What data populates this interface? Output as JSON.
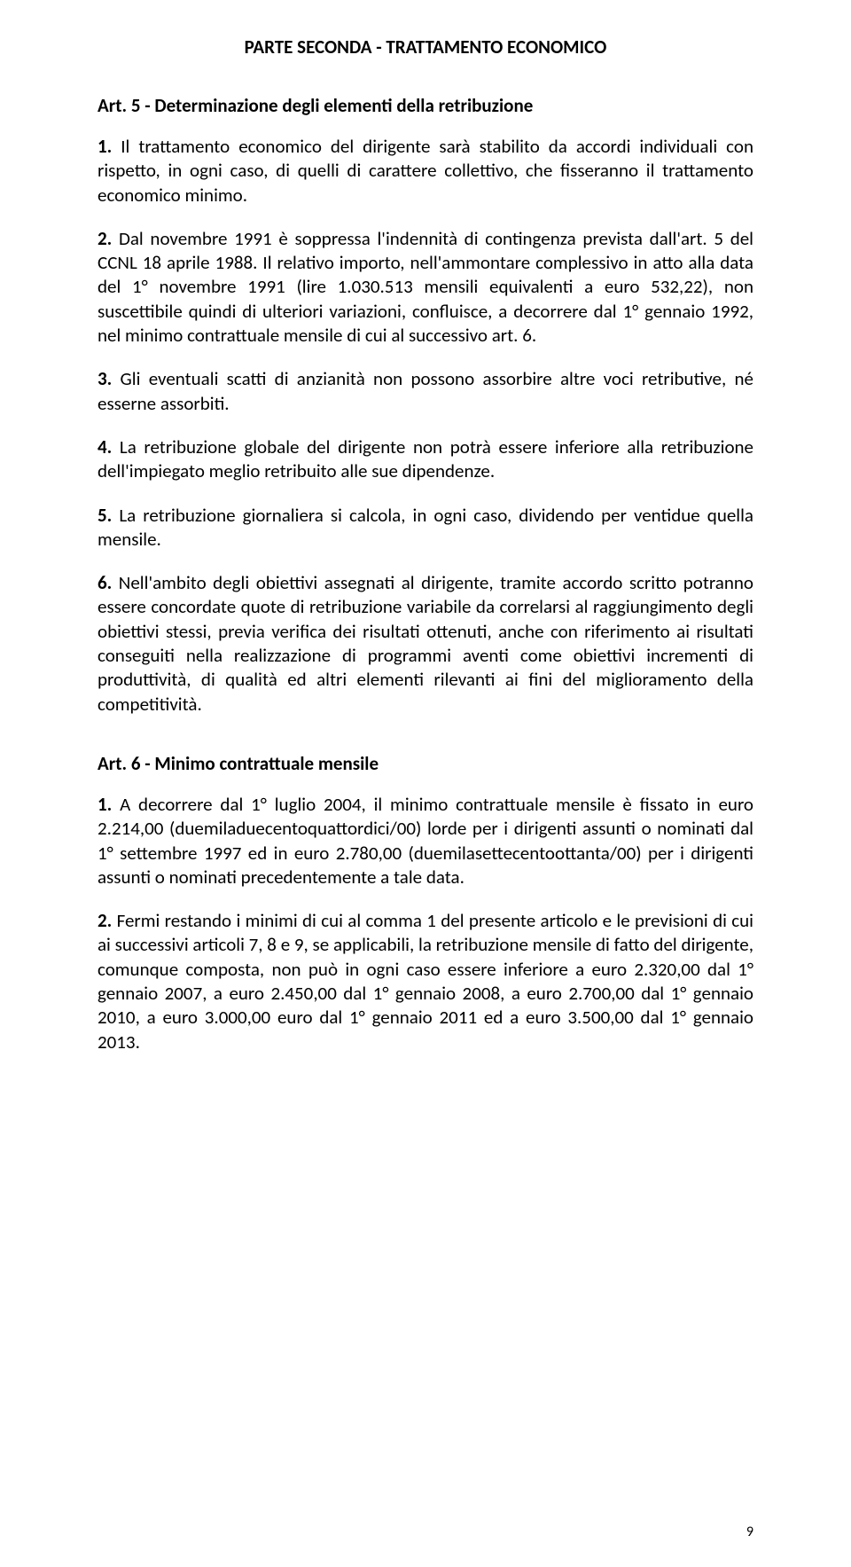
{
  "header": "PARTE SECONDA - TRATTAMENTO ECONOMICO",
  "art5": {
    "title": "Art. 5 - Determinazione degli elementi della retribuzione",
    "p1": {
      "num": "1.",
      "text": "Il trattamento economico del dirigente sarà stabilito da accordi individuali con rispetto, in ogni caso, di quelli di carattere collettivo, che fisseranno il trattamento economico minimo."
    },
    "p2": {
      "num": "2.",
      "text": "Dal novembre 1991 è soppressa l'indennità di contingenza prevista dall'art. 5 del CCNL 18 aprile 1988. Il relativo importo, nell'ammontare complessivo in atto alla data del 1° novembre 1991 (lire 1.030.513 mensili equivalenti a euro 532,22), non suscettibile quindi di ulteriori variazioni, confluisce, a decorrere dal 1° gennaio 1992, nel minimo contrattuale mensile di cui al successivo art. 6."
    },
    "p3": {
      "num": "3.",
      "text": "Gli eventuali scatti di anzianità non possono assorbire altre voci retributive, né esserne assorbiti."
    },
    "p4": {
      "num": "4.",
      "text": "La retribuzione globale del dirigente non potrà essere inferiore alla retribuzione dell'impiegato meglio retribuito alle sue dipendenze."
    },
    "p5": {
      "num": "5.",
      "text": "La retribuzione giornaliera si calcola, in ogni caso, dividendo per ventidue quella mensile."
    },
    "p6": {
      "num": "6.",
      "text": "Nell'ambito degli obiettivi assegnati al dirigente, tramite accordo scritto potranno essere concordate quote di retribuzione variabile da correlarsi al raggiungimento degli obiettivi stessi, previa verifica dei risultati ottenuti, anche con riferimento ai risultati conseguiti nella realizzazione di programmi aventi come obiettivi incrementi di produttività, di qualità ed altri elementi rilevanti ai fini del miglioramento della competitività."
    }
  },
  "art6": {
    "title": "Art. 6 - Minimo contrattuale mensile",
    "p1": {
      "num": "1.",
      "text": "A decorrere dal 1° luglio 2004, il minimo contrattuale mensile è fissato in euro 2.214,00 (duemiladuecentoquattordici/00) lorde per i dirigenti assunti o nominati dal 1° settembre 1997 ed in euro 2.780,00 (duemilasettecentoottanta/00) per i dirigenti assunti o nominati precedentemente a tale data."
    },
    "p2": {
      "num": "2.",
      "text": "Fermi restando i minimi di cui al comma 1 del presente articolo e le previsioni di cui ai successivi articoli 7, 8 e 9, se applicabili, la retribuzione mensile di fatto del dirigente, comunque composta, non può in ogni caso essere inferiore a euro 2.320,00 dal 1° gennaio 2007, a euro 2.450,00 dal 1° gennaio 2008, a euro 2.700,00 dal 1° gennaio 2010, a euro 3.000,00 euro dal 1° gennaio 2011 ed a euro 3.500,00 dal 1° gennaio 2013."
    }
  },
  "pageNumber": "9"
}
